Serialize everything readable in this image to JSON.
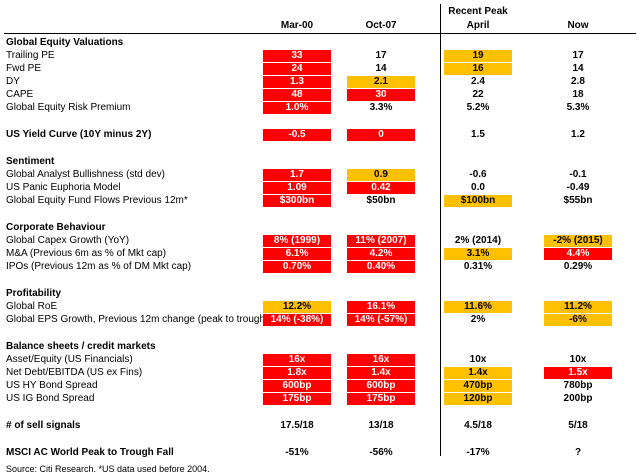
{
  "header": {
    "recent_peak_label": "Recent Peak",
    "columns": [
      "Mar-00",
      "Oct-07",
      "April",
      "Now"
    ]
  },
  "palette": {
    "highlight_red": "#ff0000",
    "highlight_yellow": "#ffc000",
    "red_text": "#ffffff",
    "yellow_text": "#000000"
  },
  "rows": [
    {
      "type": "section",
      "label": "Global Equity Valuations"
    },
    {
      "type": "data",
      "label": "Trailing PE",
      "cells": [
        {
          "v": "33",
          "c": "red"
        },
        {
          "v": "17",
          "c": "none"
        },
        {
          "v": "19",
          "c": "yellow"
        },
        {
          "v": "17",
          "c": "none"
        }
      ]
    },
    {
      "type": "data",
      "label": "Fwd PE",
      "cells": [
        {
          "v": "24",
          "c": "red"
        },
        {
          "v": "14",
          "c": "none"
        },
        {
          "v": "16",
          "c": "yellow"
        },
        {
          "v": "14",
          "c": "none"
        }
      ]
    },
    {
      "type": "data",
      "label": "DY",
      "cells": [
        {
          "v": "1.3",
          "c": "red"
        },
        {
          "v": "2.1",
          "c": "yellow"
        },
        {
          "v": "2.4",
          "c": "none"
        },
        {
          "v": "2.8",
          "c": "none"
        }
      ]
    },
    {
      "type": "data",
      "label": "CAPE",
      "cells": [
        {
          "v": "48",
          "c": "red"
        },
        {
          "v": "30",
          "c": "red"
        },
        {
          "v": "22",
          "c": "none"
        },
        {
          "v": "18",
          "c": "none"
        }
      ]
    },
    {
      "type": "data",
      "label": "Global Equity Risk Premium",
      "cells": [
        {
          "v": "1.0%",
          "c": "red"
        },
        {
          "v": "3.3%",
          "c": "none"
        },
        {
          "v": "5.2%",
          "c": "none"
        },
        {
          "v": "5.3%",
          "c": "none"
        }
      ]
    },
    {
      "type": "spacer"
    },
    {
      "type": "data",
      "bold": true,
      "label": "US Yield Curve (10Y minus 2Y)",
      "cells": [
        {
          "v": "-0.5",
          "c": "red"
        },
        {
          "v": "0",
          "c": "red"
        },
        {
          "v": "1.5",
          "c": "none"
        },
        {
          "v": "1.2",
          "c": "none"
        }
      ]
    },
    {
      "type": "spacer"
    },
    {
      "type": "section",
      "label": "Sentiment"
    },
    {
      "type": "data",
      "label": "Global Analyst Bullishness (std dev)",
      "cells": [
        {
          "v": "1.7",
          "c": "red"
        },
        {
          "v": "0.9",
          "c": "yellow"
        },
        {
          "v": "-0.6",
          "c": "none"
        },
        {
          "v": "-0.1",
          "c": "none"
        }
      ]
    },
    {
      "type": "data",
      "label": "US Panic Euphoria Model",
      "cells": [
        {
          "v": "1.09",
          "c": "red"
        },
        {
          "v": "0.42",
          "c": "red"
        },
        {
          "v": "0.0",
          "c": "none"
        },
        {
          "v": "-0.49",
          "c": "none"
        }
      ]
    },
    {
      "type": "data",
      "label": "Global Equity Fund Flows Previous 12m*",
      "cells": [
        {
          "v": "$300bn",
          "c": "red"
        },
        {
          "v": "$50bn",
          "c": "none"
        },
        {
          "v": "$100bn",
          "c": "yellow"
        },
        {
          "v": "$55bn",
          "c": "none"
        }
      ]
    },
    {
      "type": "spacer"
    },
    {
      "type": "section",
      "label": "Corporate Behaviour"
    },
    {
      "type": "data",
      "label": "Global Capex Growth (YoY)",
      "cells": [
        {
          "v": "8% (1999)",
          "c": "red"
        },
        {
          "v": "11% (2007)",
          "c": "red"
        },
        {
          "v": "2% (2014)",
          "c": "none"
        },
        {
          "v": "-2% (2015)",
          "c": "yellow"
        }
      ]
    },
    {
      "type": "data",
      "label": "M&A (Previous 6m as % of Mkt cap)",
      "cells": [
        {
          "v": "6.1%",
          "c": "red"
        },
        {
          "v": "4.2%",
          "c": "red"
        },
        {
          "v": "3.1%",
          "c": "yellow"
        },
        {
          "v": "4.4%",
          "c": "red"
        }
      ]
    },
    {
      "type": "data",
      "label": "IPOs (Previous 12m as % of DM Mkt cap)",
      "cells": [
        {
          "v": "0.70%",
          "c": "red"
        },
        {
          "v": "0.40%",
          "c": "red"
        },
        {
          "v": "0.31%",
          "c": "none"
        },
        {
          "v": "0.29%",
          "c": "none"
        }
      ]
    },
    {
      "type": "spacer"
    },
    {
      "type": "section",
      "label": "Profitability"
    },
    {
      "type": "data",
      "label": "Global RoE",
      "cells": [
        {
          "v": "12.2%",
          "c": "yellow"
        },
        {
          "v": "16.1%",
          "c": "red"
        },
        {
          "v": "11.6%",
          "c": "yellow"
        },
        {
          "v": "11.2%",
          "c": "yellow"
        }
      ]
    },
    {
      "type": "data",
      "label": "Global EPS Growth, Previous 12m change (peak to trough)",
      "cells": [
        {
          "v": "14% (-38%)",
          "c": "red"
        },
        {
          "v": "14% (-57%)",
          "c": "red"
        },
        {
          "v": "2%",
          "c": "none"
        },
        {
          "v": "-6%",
          "c": "yellow"
        }
      ]
    },
    {
      "type": "spacer"
    },
    {
      "type": "section",
      "label": "Balance sheets / credit markets"
    },
    {
      "type": "data",
      "label": "Asset/Equity (US Financials)",
      "cells": [
        {
          "v": "16x",
          "c": "red"
        },
        {
          "v": "16x",
          "c": "red"
        },
        {
          "v": "10x",
          "c": "none"
        },
        {
          "v": "10x",
          "c": "none"
        }
      ]
    },
    {
      "type": "data",
      "label": "Net Debt/EBITDA (US ex Fins)",
      "cells": [
        {
          "v": "1.8x",
          "c": "red"
        },
        {
          "v": "1.4x",
          "c": "red"
        },
        {
          "v": "1.4x",
          "c": "yellow"
        },
        {
          "v": "1.5x",
          "c": "red"
        }
      ]
    },
    {
      "type": "data",
      "label": "US HY Bond Spread",
      "cells": [
        {
          "v": "600bp",
          "c": "red"
        },
        {
          "v": "600bp",
          "c": "red"
        },
        {
          "v": "470bp",
          "c": "yellow"
        },
        {
          "v": "780bp",
          "c": "none"
        }
      ]
    },
    {
      "type": "data",
      "label": "US IG Bond Spread",
      "cells": [
        {
          "v": "175bp",
          "c": "red"
        },
        {
          "v": "175bp",
          "c": "red"
        },
        {
          "v": "120bp",
          "c": "yellow"
        },
        {
          "v": "200bp",
          "c": "none"
        }
      ]
    },
    {
      "type": "spacer"
    },
    {
      "type": "data",
      "bold": true,
      "label": "# of sell signals",
      "cells": [
        {
          "v": "17.5/18",
          "c": "none"
        },
        {
          "v": "13/18",
          "c": "none"
        },
        {
          "v": "4.5/18",
          "c": "none"
        },
        {
          "v": "5/18",
          "c": "none"
        }
      ]
    },
    {
      "type": "spacer"
    },
    {
      "type": "data",
      "bold": true,
      "label": "MSCI AC World Peak to Trough Fall",
      "cells": [
        {
          "v": "-51%",
          "c": "none"
        },
        {
          "v": "-56%",
          "c": "none"
        },
        {
          "v": "-17%",
          "c": "none"
        },
        {
          "v": "?",
          "c": "none"
        }
      ]
    }
  ],
  "source_note": "Source: Citi Research. *US data used before 2004."
}
